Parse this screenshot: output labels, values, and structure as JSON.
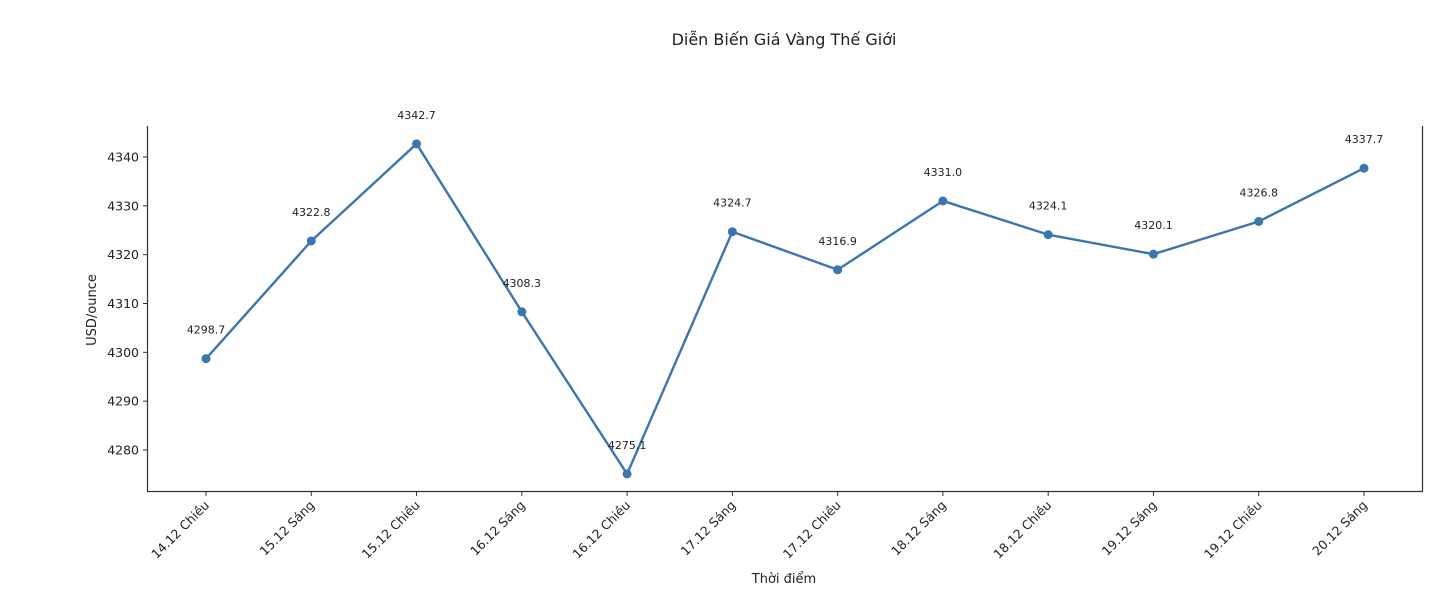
{
  "chart_data": {
    "type": "line",
    "title": "Diễn Biến Giá Vàng Thế Giới",
    "xlabel": "Thời điểm",
    "ylabel": "USD/ounce",
    "categories": [
      "14.12 Chiều",
      "15.12 Sáng",
      "15.12 Chiều",
      "16.12 Sáng",
      "16.12 Chiều",
      "17.12 Sáng",
      "17.12 Chiều",
      "18.12 Sáng",
      "18.12 Chiều",
      "19.12 Sáng",
      "19.12 Chiều",
      "20.12 Sáng"
    ],
    "series": [
      {
        "name": "Giá vàng thế giới",
        "values": [
          4298.7,
          4322.8,
          4342.7,
          4308.3,
          4275.1,
          4324.7,
          4316.9,
          4331.0,
          4324.1,
          4320.1,
          4326.8,
          4337.7
        ],
        "color": "#3d76ad",
        "marker": "circle"
      }
    ],
    "data_labels": [
      "4298.7",
      "4322.8",
      "4342.7",
      "4308.3",
      "4275.1",
      "4324.7",
      "4316.9",
      "4331.0",
      "4324.1",
      "4320.1",
      "4326.8",
      "4337.7"
    ],
    "yticks": [
      4280,
      4290,
      4300,
      4310,
      4320,
      4330,
      4340
    ],
    "ylim": [
      4271.8,
      4346.3
    ],
    "grid": false,
    "legend": null,
    "spines": {
      "top": false,
      "right": true,
      "left": true,
      "bottom": true
    }
  }
}
